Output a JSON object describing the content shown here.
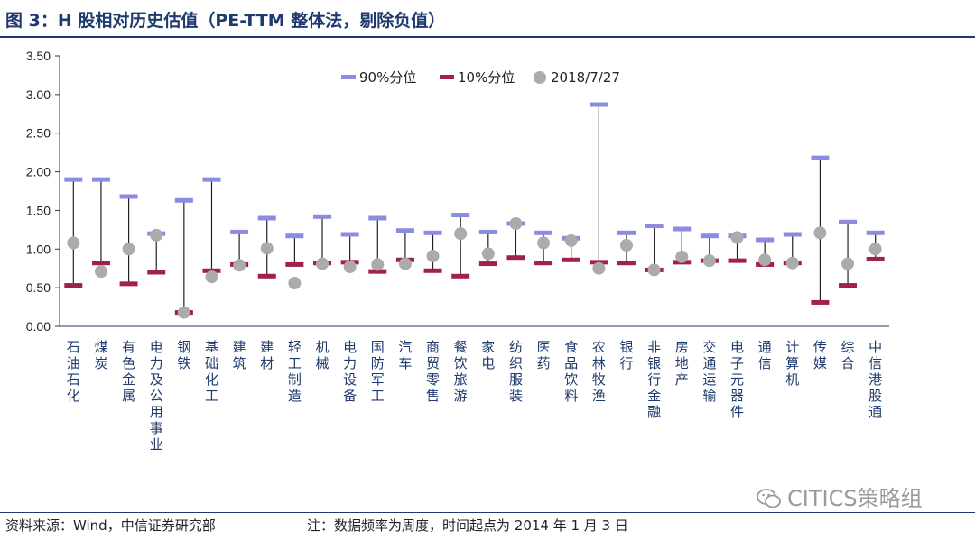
{
  "title": "图 3：H 股相对历史估值（PE-TTM 整体法，剔除负值）",
  "source": "资料来源：Wind，中信证券研究部",
  "note": "注：数据频率为周度，时间起点为 2014 年 1 月 3 日",
  "watermark": "CITICS策略组",
  "colors": {
    "p90": "#8b8be0",
    "p10": "#a02050",
    "current": "#ababab",
    "range_line": "#222222",
    "axis": "#1f3a6e"
  },
  "chart_data": {
    "type": "range",
    "title": "H 股相对历史估值（PE-TTM 整体法，剔除负值）",
    "ylim": [
      0,
      3.5
    ],
    "yticks": [
      "0.00",
      "0.50",
      "1.00",
      "1.50",
      "2.00",
      "2.50",
      "3.00",
      "3.50"
    ],
    "legend_position": "top-center",
    "legend": [
      "90%分位",
      "10%分位",
      "2018/7/27"
    ],
    "categories": [
      "石油石化",
      "煤炭",
      "有色金属",
      "电力及公用事业",
      "钢铁",
      "基础化工",
      "建筑",
      "建材",
      "轻工制造",
      "机械",
      "电力设备",
      "国防军工",
      "汽车",
      "商贸零售",
      "餐饮旅游",
      "家电",
      "纺织服装",
      "医药",
      "食品饮料",
      "农林牧渔",
      "银行",
      "非银行金融",
      "房地产",
      "交通运输",
      "电子元器件",
      "通信",
      "计算机",
      "传媒",
      "综合",
      "中信港股通"
    ],
    "series": [
      {
        "name": "90%分位",
        "values": [
          1.9,
          1.9,
          1.68,
          1.2,
          1.63,
          1.9,
          1.22,
          1.4,
          1.17,
          1.42,
          1.19,
          1.4,
          1.24,
          1.21,
          1.44,
          1.22,
          1.33,
          1.21,
          1.14,
          2.87,
          1.21,
          1.3,
          1.26,
          1.17,
          1.17,
          1.12,
          1.19,
          2.18,
          1.35,
          1.21
        ]
      },
      {
        "name": "10%分位",
        "values": [
          0.53,
          0.82,
          0.55,
          0.7,
          0.18,
          0.72,
          0.8,
          0.65,
          0.8,
          0.82,
          0.83,
          0.71,
          0.86,
          0.72,
          0.65,
          0.81,
          0.89,
          0.82,
          0.86,
          0.83,
          0.82,
          0.73,
          0.83,
          0.85,
          0.85,
          0.8,
          0.82,
          0.31,
          0.53,
          0.87
        ]
      },
      {
        "name": "2018/7/27",
        "values": [
          1.08,
          0.71,
          1.0,
          1.18,
          0.18,
          0.64,
          0.79,
          1.01,
          0.56,
          0.81,
          0.77,
          0.8,
          0.81,
          0.91,
          1.2,
          0.94,
          1.33,
          1.08,
          1.11,
          0.75,
          1.05,
          0.73,
          0.9,
          0.85,
          1.15,
          0.86,
          0.82,
          1.21,
          0.81,
          1.0
        ]
      }
    ]
  }
}
